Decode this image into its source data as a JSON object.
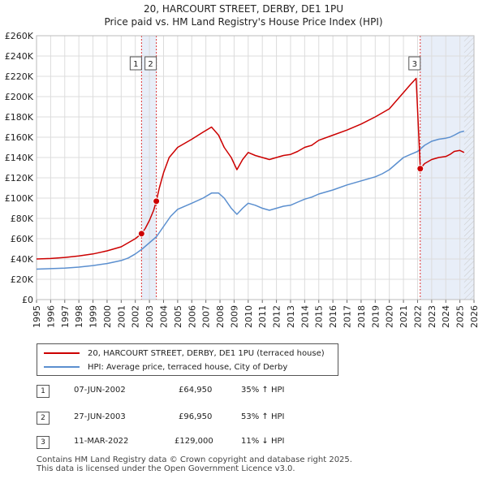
{
  "header": {
    "title": "20, HARCOURT STREET, DERBY, DE1 1PU",
    "subtitle": "Price paid vs. HM Land Registry's House Price Index (HPI)"
  },
  "chart_data": {
    "type": "line",
    "title": "20, HARCOURT STREET, DERBY, DE1 1PU",
    "subtitle": "Price paid vs. HM Land Registry's House Price Index (HPI)",
    "xlabel": "",
    "ylabel": "",
    "xlim": [
      1995,
      2026
    ],
    "ylim": [
      0,
      260000
    ],
    "x_ticks": [
      1995,
      1996,
      1997,
      1998,
      1999,
      2000,
      2001,
      2002,
      2003,
      2004,
      2005,
      2006,
      2007,
      2008,
      2009,
      2010,
      2011,
      2012,
      2013,
      2014,
      2015,
      2016,
      2017,
      2018,
      2019,
      2020,
      2021,
      2022,
      2023,
      2024,
      2025,
      2026
    ],
    "y_ticks": [
      0,
      20000,
      40000,
      60000,
      80000,
      100000,
      120000,
      140000,
      160000,
      180000,
      200000,
      220000,
      240000,
      260000
    ],
    "y_tick_labels": [
      "£0",
      "£20K",
      "£40K",
      "£60K",
      "£80K",
      "£100K",
      "£120K",
      "£140K",
      "£160K",
      "£180K",
      "£200K",
      "£220K",
      "£240K",
      "£260K"
    ],
    "grid": true,
    "series": [
      {
        "name": "20, HARCOURT STREET, DERBY, DE1 1PU (terraced house)",
        "color": "#cc0000",
        "x": [
          1995.0,
          1996.0,
          1997.0,
          1998.0,
          1999.0,
          2000.0,
          2001.0,
          2001.5,
          2002.0,
          2002.44,
          2002.7,
          2003.0,
          2003.3,
          2003.49,
          2003.7,
          2004.0,
          2004.4,
          2005.0,
          2006.0,
          2006.8,
          2007.4,
          2007.9,
          2008.3,
          2008.8,
          2009.2,
          2009.6,
          2010.0,
          2010.5,
          2011.0,
          2011.5,
          2012.0,
          2012.5,
          2013.0,
          2013.5,
          2014.0,
          2014.5,
          2015.0,
          2016.0,
          2017.0,
          2018.0,
          2019.0,
          2019.5,
          2020.0,
          2020.5,
          2021.0,
          2021.5,
          2021.9,
          2022.19,
          2022.5,
          2023.0,
          2023.5,
          2024.0,
          2024.3,
          2024.6,
          2025.0,
          2025.3
        ],
        "values": [
          40000,
          40500,
          41500,
          43000,
          45000,
          48000,
          52000,
          56000,
          60000,
          64950,
          70000,
          78000,
          88000,
          96950,
          110000,
          125000,
          140000,
          150000,
          158000,
          165000,
          170000,
          162000,
          150000,
          140000,
          128000,
          138000,
          145000,
          142000,
          140000,
          138000,
          140000,
          142000,
          143000,
          146000,
          150000,
          152000,
          157000,
          162000,
          167000,
          173000,
          180000,
          184000,
          188000,
          196000,
          204000,
          212000,
          218000,
          129000,
          134000,
          138000,
          140000,
          141000,
          143000,
          146000,
          147000,
          145000
        ]
      },
      {
        "name": "HPI: Average price, terraced house, City of Derby",
        "color": "#5b8fcf",
        "x": [
          1995.0,
          1996.0,
          1997.0,
          1998.0,
          1999.0,
          2000.0,
          2001.0,
          2001.5,
          2002.0,
          2002.5,
          2003.0,
          2003.5,
          2004.0,
          2004.5,
          2005.0,
          2006.0,
          2006.8,
          2007.4,
          2007.9,
          2008.3,
          2008.8,
          2009.2,
          2009.6,
          2010.0,
          2010.5,
          2011.0,
          2011.5,
          2012.0,
          2012.5,
          2013.0,
          2013.5,
          2014.0,
          2014.5,
          2015.0,
          2016.0,
          2017.0,
          2018.0,
          2019.0,
          2019.5,
          2020.0,
          2020.5,
          2021.0,
          2021.5,
          2022.0,
          2022.5,
          2023.0,
          2023.5,
          2024.0,
          2024.3,
          2024.6,
          2025.0,
          2025.3
        ],
        "values": [
          30000,
          30500,
          31000,
          32000,
          33500,
          35500,
          38500,
          41000,
          45000,
          50000,
          56000,
          62000,
          72000,
          82000,
          89000,
          95000,
          100000,
          105000,
          105000,
          100000,
          90000,
          84000,
          90000,
          95000,
          93000,
          90000,
          88000,
          90000,
          92000,
          93000,
          96000,
          99000,
          101000,
          104000,
          108000,
          113000,
          117000,
          121000,
          124000,
          128000,
          134000,
          140000,
          143000,
          146000,
          152000,
          156000,
          158000,
          159000,
          160000,
          162000,
          165000,
          166000
        ]
      }
    ],
    "sales": [
      {
        "label": "1",
        "x": 2002.44,
        "value": 64950
      },
      {
        "label": "2",
        "x": 2003.49,
        "value": 96950
      },
      {
        "label": "3",
        "x": 2022.19,
        "value": 129000
      }
    ],
    "shaded_ranges": [
      {
        "from": 2002.44,
        "to": 2003.49
      },
      {
        "from": 2022.19,
        "to": 2026.0
      }
    ],
    "hatched_from": 2025.3
  },
  "legend": {
    "items": [
      {
        "label": "20, HARCOURT STREET, DERBY, DE1 1PU (terraced house)",
        "color": "#cc0000"
      },
      {
        "label": "HPI: Average price, terraced house, City of Derby",
        "color": "#5b8fcf"
      }
    ]
  },
  "transactions": [
    {
      "num": "1",
      "date": "07-JUN-2002",
      "price": "£64,950",
      "hpi": "35% ↑ HPI"
    },
    {
      "num": "2",
      "date": "27-JUN-2003",
      "price": "£96,950",
      "hpi": "53% ↑ HPI"
    },
    {
      "num": "3",
      "date": "11-MAR-2022",
      "price": "£129,000",
      "hpi": "11% ↓ HPI"
    }
  ],
  "footer": {
    "line1": "Contains HM Land Registry data © Crown copyright and database right 2025.",
    "line2": "This data is licensed under the Open Government Licence v3.0."
  }
}
